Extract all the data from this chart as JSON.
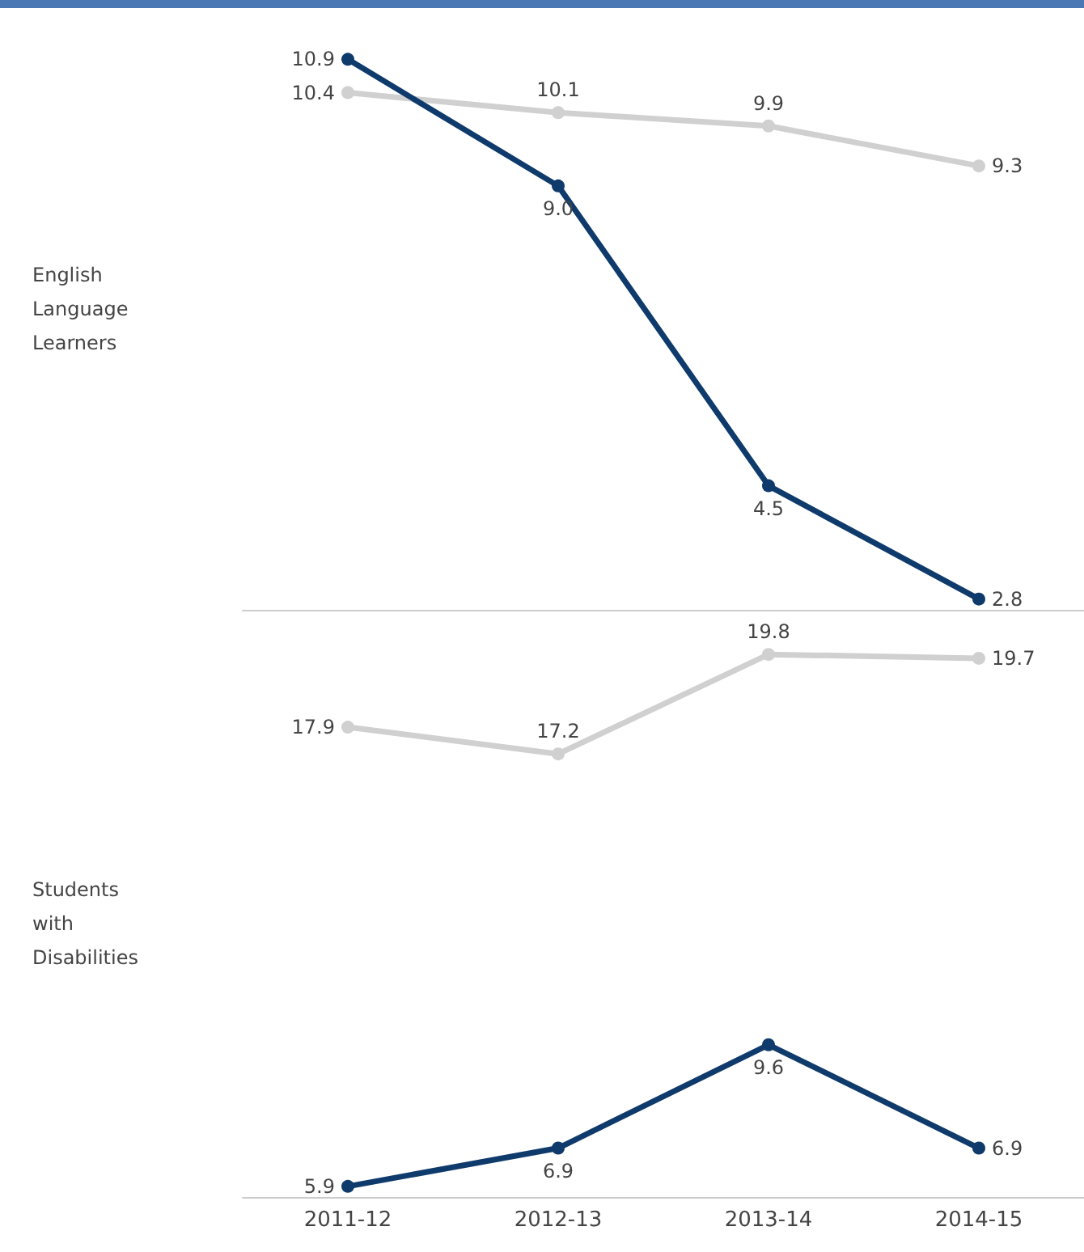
{
  "chart_data": [
    {
      "type": "line",
      "ylabel": "English Language Learners",
      "categories": [
        "2011-12",
        "2012-13",
        "2013-14",
        "2014-15"
      ],
      "marker": "circle",
      "tick_labels": false,
      "series": [
        {
          "color": "#d0d0d0",
          "values": [
            10.4,
            10.1,
            9.9,
            9.3
          ],
          "value_labels": [
            "10.4",
            "10.1",
            "9.9",
            "9.3"
          ]
        },
        {
          "color": "#0f3b6c",
          "values": [
            10.9,
            9.0,
            4.5,
            2.8
          ],
          "value_labels": [
            "10.9",
            "9.0",
            "4.5",
            "2.8"
          ]
        }
      ]
    },
    {
      "type": "line",
      "ylabel": "Students with Disabilities",
      "categories": [
        "2011-12",
        "2012-13",
        "2013-14",
        "2014-15"
      ],
      "marker": "circle",
      "tick_labels": "x",
      "series": [
        {
          "color": "#d0d0d0",
          "values": [
            17.9,
            17.2,
            19.8,
            19.7
          ],
          "value_labels": [
            "17.9",
            "17.2",
            "19.8",
            "19.7"
          ]
        },
        {
          "color": "#0f3b6c",
          "values": [
            5.9,
            6.9,
            9.6,
            6.9
          ],
          "value_labels": [
            "5.9",
            "6.9",
            "9.6",
            "6.9"
          ]
        }
      ]
    }
  ]
}
